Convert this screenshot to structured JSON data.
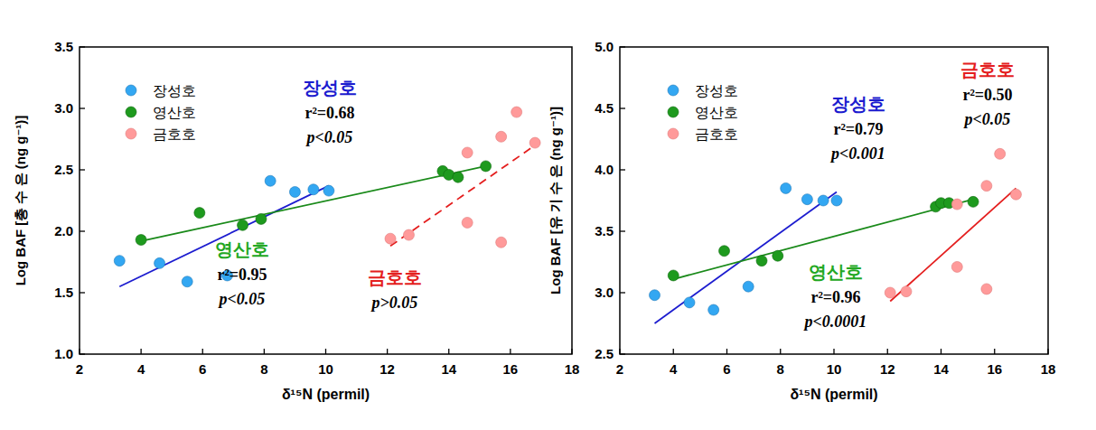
{
  "chart_data": [
    {
      "type": "scatter",
      "x_label": "δ¹⁵N (permil)",
      "y_label": "Log BAF [총 수 은 (ng g⁻¹)]",
      "xlim": [
        2,
        18
      ],
      "xticks": [
        2,
        4,
        6,
        8,
        10,
        12,
        14,
        16,
        18
      ],
      "ylim": [
        1.0,
        3.5
      ],
      "yticks": [
        {
          "value": 1.0,
          "label": "1.0"
        },
        1.5,
        {
          "value": 2.0,
          "label": "2.0"
        },
        2.5,
        {
          "value": 3.0,
          "label": "3.0"
        },
        3.5
      ],
      "legend": "top-left",
      "series": [
        {
          "name": "장성호",
          "color": "#33a7f2",
          "marker": "circle",
          "line_style": "solid",
          "x": [
            3.3,
            4.6,
            5.5,
            6.8,
            8.2,
            9.0,
            9.6,
            10.1
          ],
          "values": [
            1.76,
            1.74,
            1.59,
            1.64,
            2.41,
            2.32,
            2.34,
            2.33
          ],
          "fit_x": [
            3.3,
            10.1
          ],
          "fit_y": [
            1.55,
            2.37
          ],
          "stats": [
            "r²=0.68",
            "p<0.05"
          ]
        },
        {
          "name": "영산호",
          "color": "#1e9a1e",
          "marker": "circle",
          "line_style": "solid",
          "x": [
            4.0,
            5.9,
            7.3,
            7.9,
            13.8,
            14.0,
            14.3,
            15.2
          ],
          "values": [
            1.93,
            2.15,
            2.05,
            2.1,
            2.49,
            2.46,
            2.44,
            2.53
          ],
          "fit_x": [
            4.0,
            15.2
          ],
          "fit_y": [
            1.92,
            2.53
          ],
          "stats": [
            "r²=0.95",
            "p<0.05"
          ]
        },
        {
          "name": "금호호",
          "color": "#ff9a9a",
          "marker": "circle",
          "line_style": "dashed",
          "x": [
            12.1,
            12.7,
            14.6,
            14.6,
            15.7,
            15.7,
            16.2,
            16.8
          ],
          "values": [
            1.94,
            1.97,
            2.64,
            2.07,
            2.77,
            1.91,
            2.97,
            2.72
          ],
          "fit_x": [
            12.1,
            16.8
          ],
          "fit_y": [
            1.88,
            2.7
          ],
          "stats": [
            "p>0.05"
          ]
        }
      ]
    },
    {
      "type": "scatter",
      "x_label": "δ¹⁵N (permil)",
      "y_label": "Log BAF [유 기 수 은 (ng g⁻¹)]",
      "xlim": [
        2,
        18
      ],
      "xticks": [
        2,
        4,
        6,
        8,
        10,
        12,
        14,
        16,
        18
      ],
      "ylim": [
        2.5,
        5.0
      ],
      "yticks": [
        2.5,
        {
          "value": 3.0,
          "label": "3.0"
        },
        3.5,
        {
          "value": 4.0,
          "label": "4.0"
        },
        4.5,
        {
          "value": 5.0,
          "label": "5.0"
        }
      ],
      "legend": "top-left",
      "series": [
        {
          "name": "장성호",
          "color": "#33a7f2",
          "marker": "circle",
          "line_style": "solid",
          "x": [
            3.3,
            4.6,
            5.5,
            6.8,
            8.2,
            9.0,
            9.6,
            10.1
          ],
          "values": [
            2.98,
            2.92,
            2.86,
            3.05,
            3.85,
            3.76,
            3.75,
            3.75
          ],
          "fit_x": [
            3.3,
            10.1
          ],
          "fit_y": [
            2.75,
            3.82
          ],
          "stats": [
            "r²=0.79",
            "p<0.001"
          ]
        },
        {
          "name": "영산호",
          "color": "#1e9a1e",
          "marker": "circle",
          "line_style": "solid",
          "x": [
            4.0,
            5.9,
            7.3,
            7.9,
            13.8,
            14.0,
            14.3,
            15.2
          ],
          "values": [
            3.14,
            3.34,
            3.26,
            3.3,
            3.7,
            3.73,
            3.73,
            3.74
          ],
          "fit_x": [
            4.0,
            15.2
          ],
          "fit_y": [
            3.11,
            3.76
          ],
          "stats": [
            "r²=0.96",
            "p<0.0001"
          ]
        },
        {
          "name": "금호호",
          "color": "#ff9a9a",
          "marker": "circle",
          "line_style": "solid",
          "x": [
            12.1,
            12.7,
            14.6,
            14.6,
            15.7,
            15.7,
            16.2,
            16.8
          ],
          "values": [
            3.0,
            3.01,
            3.72,
            3.21,
            3.87,
            3.03,
            4.13,
            3.8
          ],
          "fit_x": [
            12.1,
            16.8
          ],
          "fit_y": [
            2.93,
            3.85
          ],
          "stats": [
            "r²=0.50",
            "p<0.05"
          ]
        }
      ]
    }
  ]
}
